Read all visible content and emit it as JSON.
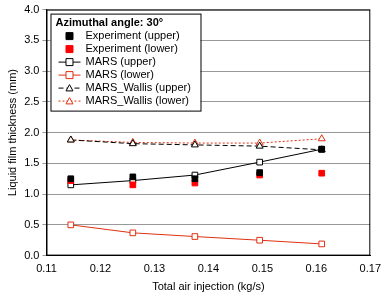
{
  "chart_data": {
    "type": "line",
    "legend_title": "Azimuthal angle: 30°",
    "x_label": "Total air injection (kg/s)",
    "y_label": "Liquid film thickness (mm)",
    "x": [
      0.1145,
      0.126,
      0.1375,
      0.1495,
      0.161
    ],
    "series": [
      {
        "name": "Experiment (upper)",
        "color": "#000000",
        "marker": "square_filled",
        "line_style": "none",
        "values": [
          1.25,
          1.28,
          1.25,
          1.35,
          1.73
        ]
      },
      {
        "name": "Experiment (lower)",
        "color": "#ff0000",
        "marker": "square_filled",
        "line_style": "none",
        "values": [
          1.22,
          1.15,
          1.18,
          1.31,
          1.34
        ]
      },
      {
        "name": "MARS (upper)",
        "color": "#000000",
        "marker": "square_open",
        "line_style": "solid",
        "values": [
          1.15,
          1.22,
          1.31,
          1.52,
          1.73
        ]
      },
      {
        "name": "MARS (lower)",
        "color": "#e03010",
        "marker": "square_open",
        "line_style": "solid",
        "values": [
          0.5,
          0.37,
          0.31,
          0.25,
          0.19
        ]
      },
      {
        "name": "MARS_Wallis (upper)",
        "color": "#000000",
        "marker": "triangle_open",
        "line_style": "dashed",
        "values": [
          1.88,
          1.82,
          1.8,
          1.78,
          1.72
        ]
      },
      {
        "name": "MARS_Wallis (lower)",
        "color": "#e03010",
        "marker": "triangle_open",
        "line_style": "dotted",
        "values": [
          1.88,
          1.84,
          1.83,
          1.83,
          1.9
        ]
      }
    ],
    "xlim": [
      0.11,
      0.17
    ],
    "xticks": [
      0.11,
      0.12,
      0.13,
      0.14,
      0.15,
      0.16,
      0.17
    ],
    "ylim": [
      0,
      4
    ],
    "yticks": [
      {
        "value": 0,
        "label": "0.0"
      },
      0.5,
      {
        "value": 1,
        "label": "1.0"
      },
      1.5,
      {
        "value": 2,
        "label": "2.0"
      },
      2.5,
      {
        "value": 3,
        "label": "3.0"
      },
      3.5,
      {
        "value": 4,
        "label": "4.0"
      }
    ],
    "grid": "y",
    "legend": "upper left"
  }
}
